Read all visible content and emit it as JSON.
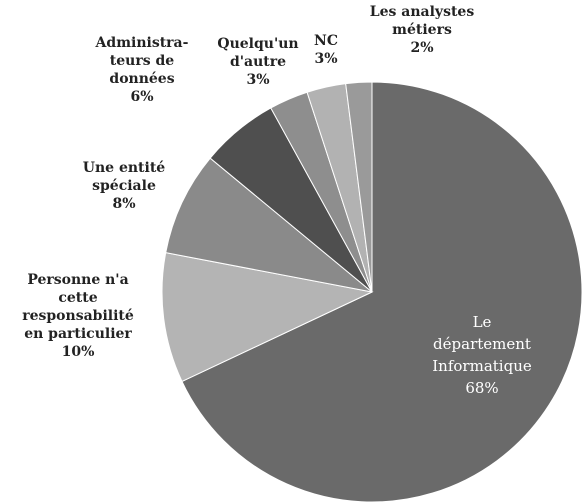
{
  "chart_data": {
    "type": "pie",
    "categories": [
      "Le\ndépartement\nInformatique",
      "Personne n'a\ncette\nresponsabilité\nen particulier",
      "Une entité\nspéciale",
      "Administra-\nteurs de\ndonnées",
      "Quelqu'un\nd'autre",
      "NC",
      "Les analystes\nmétiers"
    ],
    "values": [
      68,
      10,
      8,
      6,
      3,
      3,
      2
    ],
    "value_labels": [
      "68%",
      "10%",
      "8%",
      "6%",
      "3%",
      "3%",
      "2%"
    ],
    "colors": [
      "#6a6a6a",
      "#b4b4b4",
      "#8a8a8a",
      "#4f4f4f",
      "#8e8e8e",
      "#b2b2b2",
      "#9a9a9a"
    ]
  }
}
